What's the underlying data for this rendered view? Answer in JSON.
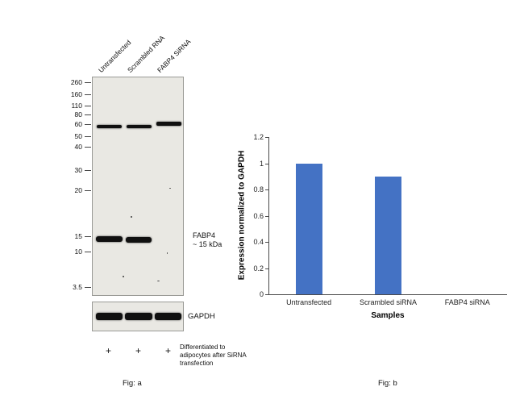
{
  "figure": {
    "fig_a": "Fig: a",
    "fig_b": "Fig: b"
  },
  "blot": {
    "lane_labels": [
      "Untransfected",
      "Scrambled RNA",
      "FABP4 SiRNA"
    ],
    "mw_markers": [
      "260",
      "160",
      "110",
      "80",
      "60",
      "50",
      "40",
      "30",
      "20",
      "15",
      "10",
      "3.5"
    ],
    "target_label": "FABP4",
    "target_size": "~ 15 kDa",
    "loading_control_label": "GAPDH",
    "plus_signs": [
      "+",
      "+",
      "+"
    ],
    "treatment_note": "Differentiated to adipocytes after SiRNA transfection"
  },
  "chart_data": {
    "type": "bar",
    "title": "",
    "categories": [
      "Untransfected",
      "Scrambled siRNA",
      "FABP4 siRNA"
    ],
    "values": [
      1.0,
      0.9,
      0
    ],
    "xlabel": "Samples",
    "ylabel": "Expression normalized to GAPDH",
    "ylim": [
      0,
      1.2
    ],
    "yticks": [
      0,
      0.2,
      0.4,
      0.6,
      0.8,
      1,
      1.2
    ],
    "bar_color": "#4472C4",
    "grid": false,
    "legend": "none"
  }
}
